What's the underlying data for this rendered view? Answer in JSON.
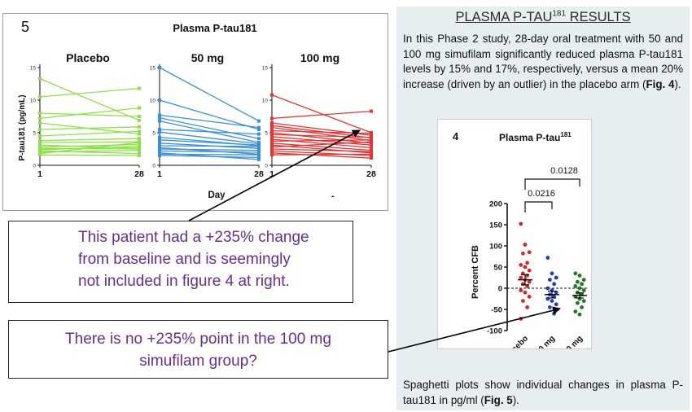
{
  "figure5": {
    "panel_number": "5",
    "title": "Plasma P-tau181",
    "ylabel": "P-tau181 (pg/mL)",
    "xlabel": "Day",
    "groups": [
      "Placebo",
      "50 mg",
      "100 mg"
    ],
    "colors": [
      "#8ee04a",
      "#3b8fd8",
      "#e33535"
    ]
  },
  "chart_data": [
    {
      "type": "line",
      "title": "Plasma P-tau181",
      "ylabel": "P-tau181 (pg/mL)",
      "xlabel": "Day",
      "x": [
        1,
        28
      ],
      "x_ticks": [
        "1",
        "28"
      ],
      "ylim": [
        0,
        15
      ],
      "y_ticks": [
        0,
        5,
        10,
        15
      ],
      "panels": [
        {
          "name": "Placebo",
          "color": "#8ee04a",
          "pairs": [
            [
              13.3,
              6.9
            ],
            [
              10.5,
              11.8
            ],
            [
              8.0,
              7.5
            ],
            [
              7.2,
              8.8
            ],
            [
              6.5,
              4.8
            ],
            [
              5.5,
              5.9
            ],
            [
              4.5,
              5.2
            ],
            [
              3.8,
              4.1
            ],
            [
              3.5,
              3.6
            ],
            [
              3.1,
              2.6
            ],
            [
              2.8,
              3.2
            ],
            [
              2.6,
              2.5
            ],
            [
              2.4,
              2.9
            ],
            [
              2.2,
              1.8
            ],
            [
              2.0,
              2.3
            ],
            [
              1.8,
              3.5
            ],
            [
              1.6,
              1.5
            ]
          ]
        },
        {
          "name": "50 mg",
          "color": "#3b8fd8",
          "pairs": [
            [
              15.0,
              6.8
            ],
            [
              10.0,
              5.5
            ],
            [
              7.7,
              5.8
            ],
            [
              7.3,
              4.1
            ],
            [
              6.8,
              3.5
            ],
            [
              5.5,
              4.8
            ],
            [
              5.1,
              3.3
            ],
            [
              4.3,
              3.0
            ],
            [
              3.9,
              3.1
            ],
            [
              3.4,
              2.6
            ],
            [
              3.0,
              2.9
            ],
            [
              2.7,
              1.7
            ],
            [
              2.5,
              2.3
            ],
            [
              2.2,
              2.0
            ],
            [
              1.9,
              0.9
            ],
            [
              1.7,
              1.6
            ],
            [
              1.5,
              1.2
            ]
          ]
        },
        {
          "name": "100 mg",
          "color": "#e33535",
          "pairs": [
            [
              10.8,
              5.0
            ],
            [
              7.2,
              8.3
            ],
            [
              6.5,
              4.6
            ],
            [
              6.1,
              4.2
            ],
            [
              5.8,
              3.8
            ],
            [
              5.3,
              4.9
            ],
            [
              5.0,
              3.4
            ],
            [
              4.7,
              4.3
            ],
            [
              4.4,
              3.1
            ],
            [
              4.0,
              2.7
            ],
            [
              3.7,
              3.9
            ],
            [
              3.4,
              2.3
            ],
            [
              3.1,
              1.9
            ],
            [
              2.8,
              3.6
            ],
            [
              2.5,
              2.1
            ],
            [
              2.2,
              1.5
            ],
            [
              1.9,
              1.1
            ],
            [
              1.6,
              1.7
            ]
          ]
        }
      ]
    },
    {
      "type": "scatter",
      "title": "Plasma P-tau181",
      "ylabel": "Percent CFB",
      "categories": [
        "Placebo",
        "50 mg",
        "100 mg"
      ],
      "ylim": [
        -100,
        200
      ],
      "y_ticks": [
        200,
        150,
        100,
        50,
        0,
        -50,
        -100
      ],
      "series": [
        {
          "name": "Placebo",
          "color": "#d62828",
          "mean": 20,
          "sem": 12,
          "values": [
            152,
            103,
            85,
            82,
            60,
            55,
            50,
            42,
            35,
            30,
            25,
            20,
            15,
            10,
            5,
            -5,
            -10,
            -20,
            -30,
            -45,
            -72
          ]
        },
        {
          "name": "50 mg",
          "color": "#1f3fbf",
          "mean": -15,
          "sem": 8,
          "values": [
            72,
            35,
            25,
            20,
            10,
            0,
            -5,
            -10,
            -15,
            -20,
            -25,
            -30,
            -38,
            -45,
            -60
          ]
        },
        {
          "name": "100 mg",
          "color": "#1f7a1f",
          "mean": -17,
          "sem": 6,
          "values": [
            35,
            30,
            20,
            15,
            10,
            5,
            0,
            -5,
            -10,
            -15,
            -20,
            -25,
            -30,
            -35,
            -45,
            -55,
            -62
          ]
        }
      ],
      "comparisons": [
        {
          "groups": [
            "Placebo",
            "50 mg"
          ],
          "p": "0.0216"
        },
        {
          "groups": [
            "Placebo",
            "100 mg"
          ],
          "p": "0.0128"
        }
      ]
    }
  ],
  "right_panel": {
    "heading_main": "PLASMA P-TAU",
    "heading_sup": "181",
    "heading_tail": " RESULTS",
    "intro_text": "In this Phase 2 study, 28-day oral treatment with 50 and 100 mg simufilam significantly reduced plasma P-tau181 levels by 15% and 17%, respectively, versus a mean 20% increase (driven by an outlier) in the placebo arm (",
    "intro_fig_ref": "Fig. 4",
    "intro_end": ").",
    "fig4_number": "4",
    "fig4_title_main": "Plasma P-tau",
    "fig4_title_sup": "181",
    "p_value_1": "0.0216",
    "p_value_2": "0.0128",
    "caption_text": "Spaghetti plots show individual changes in plasma P-tau181 in pg/ml (",
    "caption_fig_ref": "Fig. 5",
    "caption_end": ")."
  },
  "callouts": {
    "callout1": [
      "This patient had a +235% change",
      "from baseline and is seemingly",
      "not included in figure 4 at right."
    ],
    "callout2": [
      "There is no +235% point in the 100 mg",
      "simufilam group?"
    ]
  },
  "colors": {
    "arrow": "#000000",
    "panel_bg": "#e7eeef",
    "callout_text": "#6a2c91"
  }
}
